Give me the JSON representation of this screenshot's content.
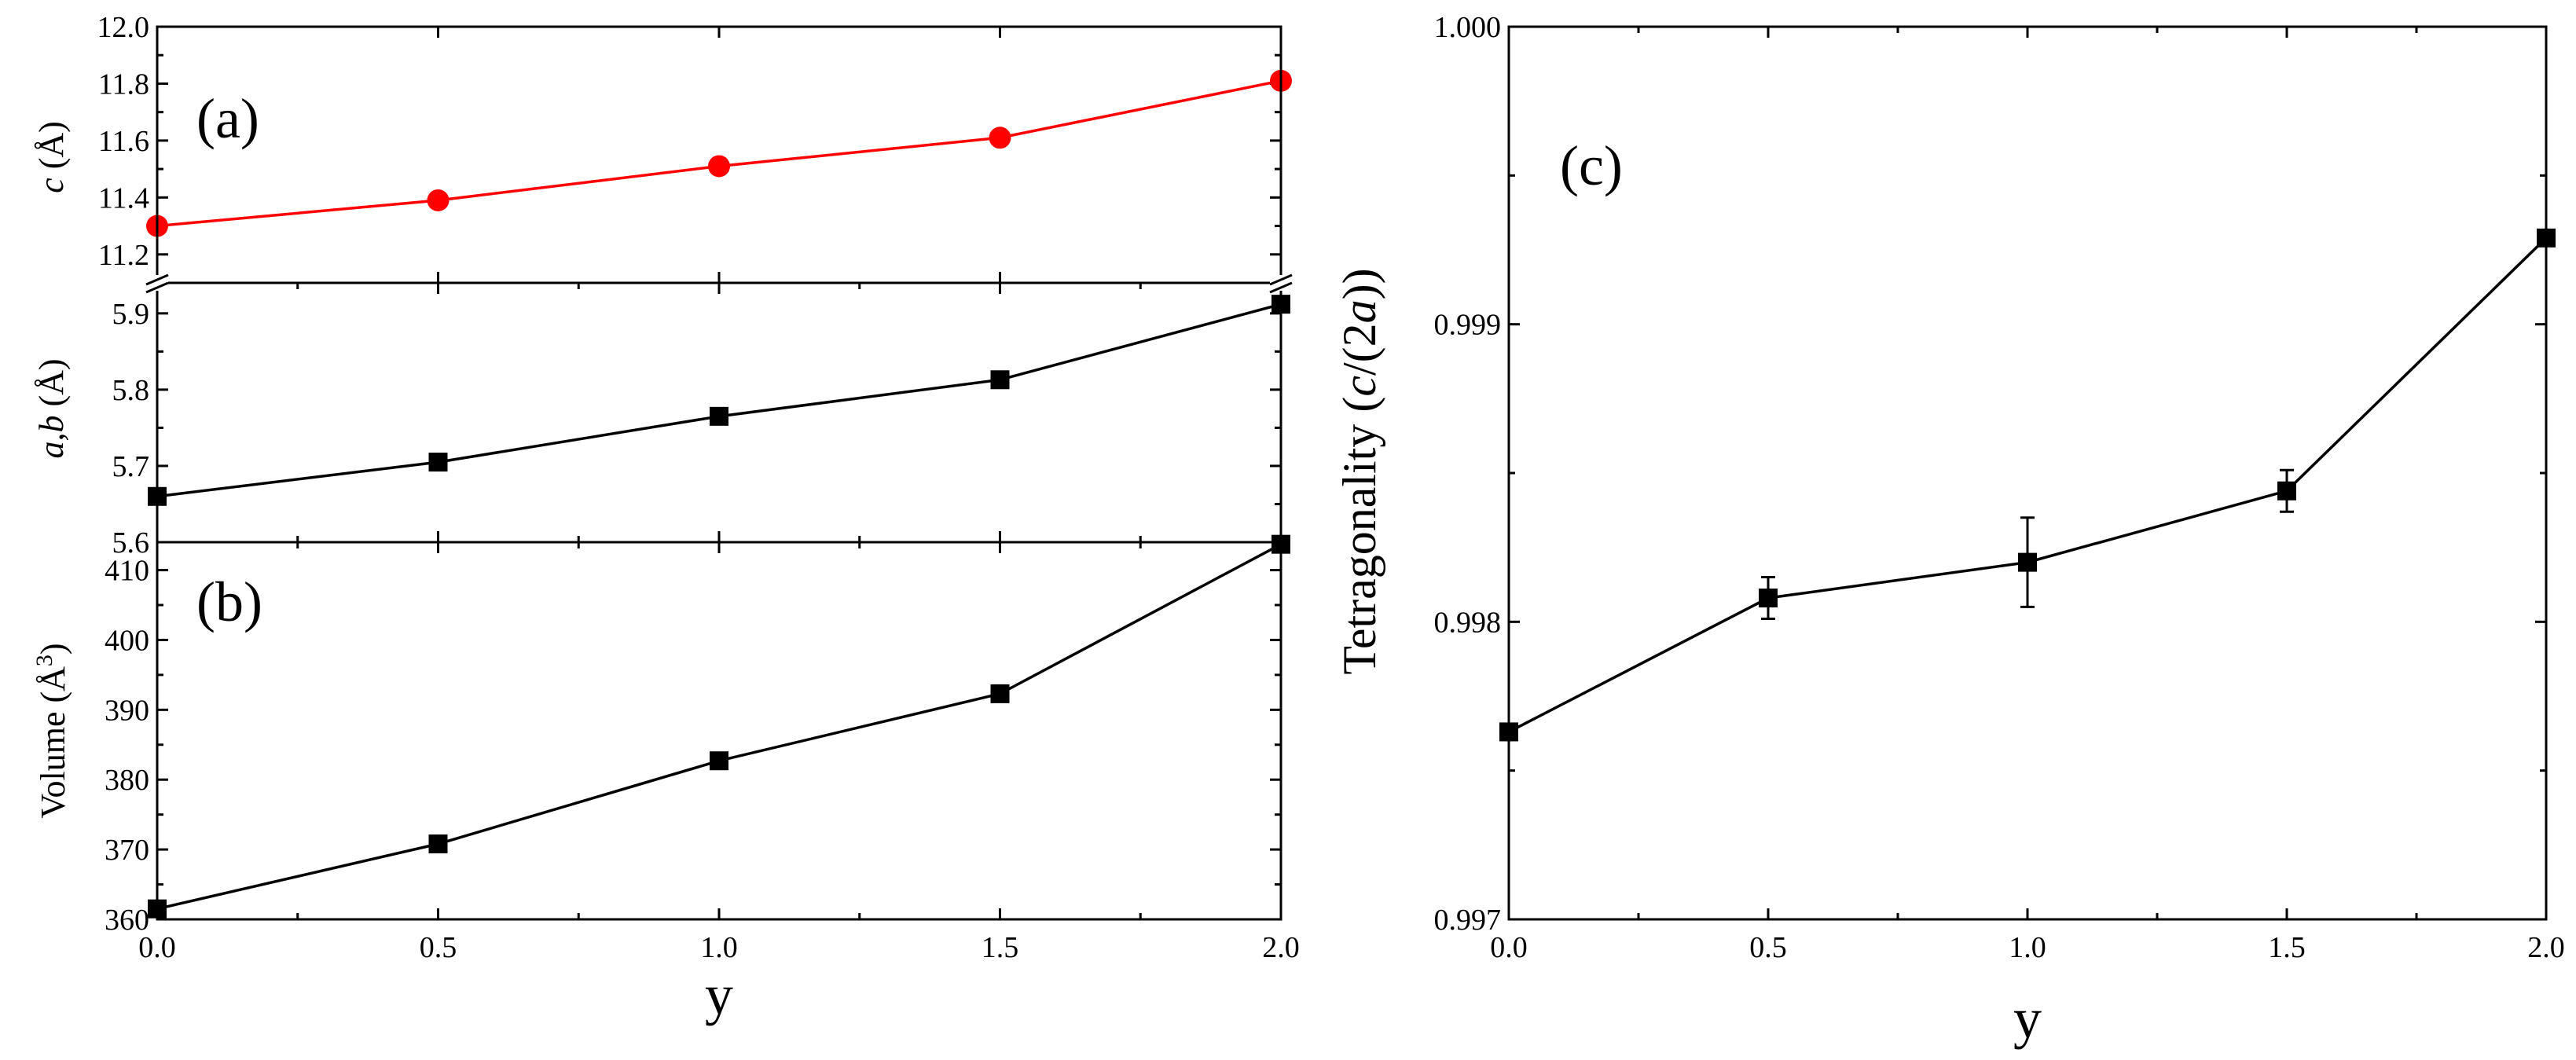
{
  "chart_data": [
    {
      "type": "line",
      "panel_label": "(a)",
      "ylabel_top": "c (Å)",
      "ylabel_top_parts": {
        "italic": "c",
        "rest": " (Å)"
      },
      "ylabel_bottom": "a,b (Å)",
      "ylabel_bottom_parts": {
        "italic": "a,b",
        "rest": " (Å)"
      },
      "axis_break": true,
      "top_section": {
        "ylim": [
          11.1,
          12.0
        ],
        "yticks": [
          "11.2",
          "11.4",
          "11.6",
          "11.8",
          "12.0"
        ],
        "series": [
          {
            "name": "c",
            "color": "#ff0000",
            "marker": "circle",
            "x": [
              0.0,
              0.5,
              1.0,
              1.5,
              2.0
            ],
            "values": [
              11.3,
              11.39,
              11.51,
              11.61,
              11.81
            ]
          }
        ]
      },
      "bottom_section": {
        "ylim": [
          5.6,
          5.94
        ],
        "yticks": [
          "5.6",
          "5.7",
          "5.8",
          "5.9"
        ],
        "series": [
          {
            "name": "a,b",
            "color": "#000000",
            "marker": "square",
            "x": [
              0.0,
              0.5,
              1.0,
              1.5,
              2.0
            ],
            "values": [
              5.66,
              5.705,
              5.765,
              5.813,
              5.912
            ]
          }
        ]
      },
      "xlim": [
        0.0,
        2.0
      ]
    },
    {
      "type": "line",
      "panel_label": "(b)",
      "ylabel": "Volume (Å3)",
      "ylabel_parts": {
        "base": "Volume (Å",
        "sup": "3",
        "close": ")"
      },
      "xlabel": "y",
      "xlim": [
        0.0,
        2.0
      ],
      "ylim": [
        360,
        414
      ],
      "xticks": [
        "0.0",
        "0.5",
        "1.0",
        "1.5",
        "2.0"
      ],
      "yticks": [
        "360",
        "370",
        "380",
        "390",
        "400",
        "410"
      ],
      "series": [
        {
          "name": "Volume",
          "color": "#000000",
          "marker": "square",
          "x": [
            0.0,
            0.5,
            1.0,
            1.5,
            2.0
          ],
          "values": [
            361.5,
            370.8,
            382.7,
            392.3,
            413.7
          ]
        }
      ]
    },
    {
      "type": "line",
      "panel_label": "(c)",
      "ylabel": "Tetragonality (c/(2a))",
      "ylabel_parts": {
        "a": "Tetragonality (",
        "b": "c",
        "c": "/(2",
        "d": "a",
        "e": "))"
      },
      "xlabel": "y",
      "xlim": [
        0.0,
        2.0
      ],
      "ylim": [
        0.997,
        1.0
      ],
      "xticks": [
        "0.0",
        "0.5",
        "1.0",
        "1.5",
        "2.0"
      ],
      "yticks": [
        "0.997",
        "0.998",
        "0.999",
        "1.000"
      ],
      "series": [
        {
          "name": "Tetragonality",
          "color": "#000000",
          "marker": "square",
          "x": [
            0.0,
            0.5,
            1.0,
            1.5,
            2.0
          ],
          "values": [
            0.99763,
            0.99808,
            0.9982,
            0.99844,
            0.99929
          ],
          "errors": [
            0.0,
            7e-05,
            0.00015,
            7e-05,
            0.0
          ]
        }
      ]
    }
  ]
}
